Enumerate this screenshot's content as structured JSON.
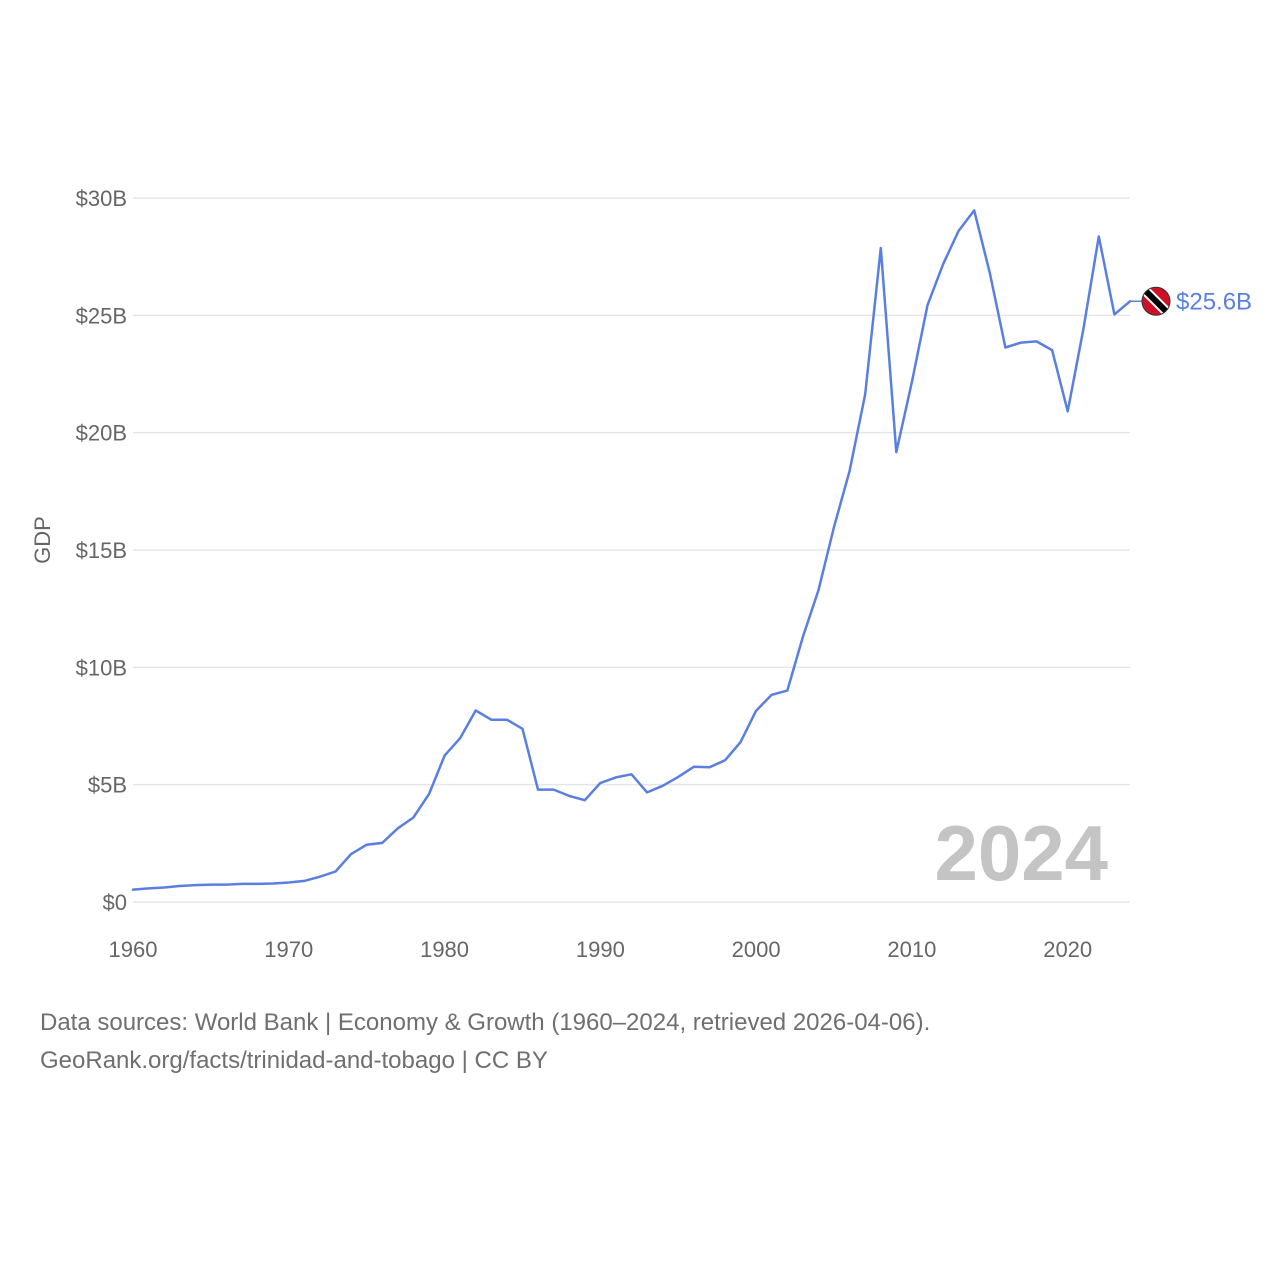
{
  "chart_data": {
    "type": "line",
    "ylabel": "GDP",
    "ylim": [
      0,
      30
    ],
    "yticks": [
      0,
      5,
      10,
      15,
      20,
      25,
      30
    ],
    "ytick_labels": [
      "$0",
      "$5B",
      "$10B",
      "$15B",
      "$20B",
      "$25B",
      "$30B"
    ],
    "xlim": [
      1960,
      2024
    ],
    "xticks": [
      1960,
      1970,
      1980,
      1990,
      2000,
      2010,
      2020
    ],
    "xtick_labels": [
      "1960",
      "1970",
      "1980",
      "1990",
      "2000",
      "2010",
      "2020"
    ],
    "year_label": "2024",
    "series": [
      {
        "name": "Trinidad and Tobago",
        "color": "#5b7fe0",
        "end_label": "$25.6B",
        "x": [
          1960,
          1961,
          1962,
          1963,
          1964,
          1965,
          1966,
          1967,
          1968,
          1969,
          1970,
          1971,
          1972,
          1973,
          1974,
          1975,
          1976,
          1977,
          1978,
          1979,
          1980,
          1981,
          1982,
          1983,
          1984,
          1985,
          1986,
          1987,
          1988,
          1989,
          1990,
          1991,
          1992,
          1993,
          1994,
          1995,
          1996,
          1997,
          1998,
          1999,
          2000,
          2001,
          2002,
          2003,
          2004,
          2005,
          2006,
          2007,
          2008,
          2009,
          2010,
          2011,
          2012,
          2013,
          2014,
          2015,
          2016,
          2017,
          2018,
          2019,
          2020,
          2021,
          2022,
          2023,
          2024
        ],
        "values": [
          0.53,
          0.58,
          0.62,
          0.68,
          0.72,
          0.74,
          0.74,
          0.77,
          0.77,
          0.79,
          0.83,
          0.9,
          1.08,
          1.3,
          2.04,
          2.44,
          2.52,
          3.14,
          3.6,
          4.6,
          6.24,
          6.98,
          8.16,
          7.77,
          7.77,
          7.38,
          4.79,
          4.79,
          4.52,
          4.34,
          5.07,
          5.31,
          5.44,
          4.67,
          4.95,
          5.33,
          5.76,
          5.74,
          6.04,
          6.81,
          8.15,
          8.83,
          9.01,
          11.3,
          13.28,
          15.98,
          18.37,
          21.64,
          27.87,
          19.17,
          22.16,
          25.43,
          27.18,
          28.6,
          29.47,
          26.81,
          23.63,
          23.84,
          23.89,
          23.52,
          20.91,
          24.39,
          28.36,
          25.04,
          25.6
        ]
      }
    ]
  },
  "footer": {
    "line1": "Data sources: World Bank | Economy & Growth (1960–2024, retrieved 2026-04-06).",
    "line2": "GeoRank.org/facts/trinidad-and-tobago | CC BY"
  }
}
